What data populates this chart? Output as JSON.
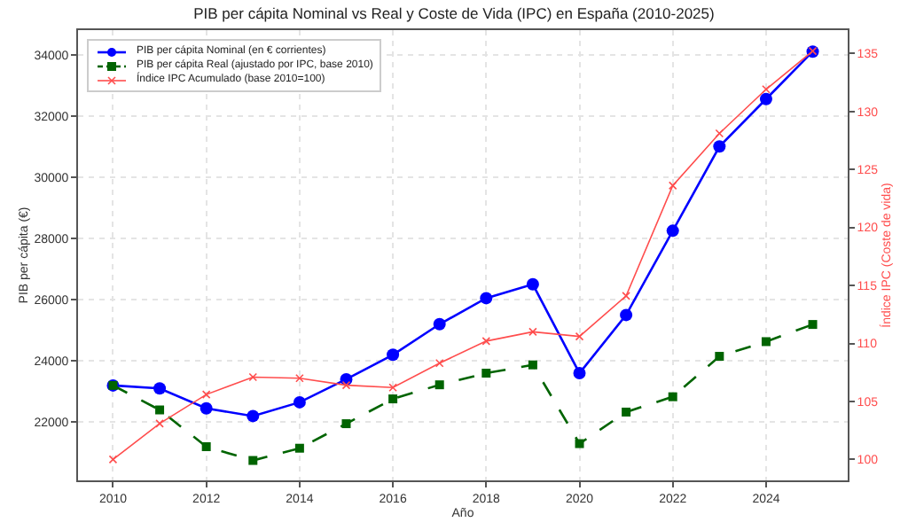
{
  "chart_data": {
    "type": "line",
    "title": "PIB per cápita Nominal vs Real y Coste de Vida (IPC) en España (2010-2025)",
    "xlabel": "Año",
    "ylabel": "PIB per cápita (€)",
    "y2label": "Índice IPC (Coste de vida)",
    "x": [
      2010,
      2011,
      2012,
      2013,
      2014,
      2015,
      2016,
      2017,
      2018,
      2019,
      2020,
      2021,
      2022,
      2023,
      2024,
      2025
    ],
    "series": [
      {
        "name": "PIB per cápita Nominal (en € corrientes)",
        "color": "#0000ff",
        "marker": "circle",
        "line_style": "solid",
        "values": [
          23200,
          23100,
          22450,
          22200,
          22650,
          23400,
          24200,
          25200,
          26050,
          26500,
          23600,
          25500,
          28250,
          31000,
          32550,
          34100
        ]
      },
      {
        "name": "PIB per cápita Real (ajustado por IPC, base 2010)",
        "color": "#006400",
        "marker": "square",
        "line_style": "dashed",
        "values": [
          23200,
          22400,
          21200,
          20750,
          21150,
          21950,
          22760,
          23220,
          23600,
          23870,
          21300,
          22330,
          22830,
          24150,
          24630,
          25190
        ]
      },
      {
        "name": "Índice IPC Acumulado (base 2010=100)",
        "color": "#ff4d4d",
        "marker": "cross",
        "line_style": "solid",
        "axis": "y2",
        "values": [
          100,
          103.1,
          105.6,
          107.1,
          107,
          106.4,
          106.2,
          108.3,
          110.2,
          111,
          110.6,
          114.1,
          123.6,
          128.1,
          131.9,
          135.2
        ]
      }
    ],
    "xlim": [
      2009.25,
      2025.75
    ],
    "xticks": [
      2010,
      2012,
      2014,
      2016,
      2018,
      2020,
      2022,
      2024
    ],
    "ylim": [
      20100,
      34800
    ],
    "yticks": [
      22000,
      24000,
      26000,
      28000,
      30000,
      32000,
      34000
    ],
    "y2lim": [
      98.2,
      137
    ],
    "y2ticks": [
      100,
      105,
      110,
      115,
      120,
      125,
      130,
      135
    ],
    "grid": true,
    "legend": "top left"
  }
}
